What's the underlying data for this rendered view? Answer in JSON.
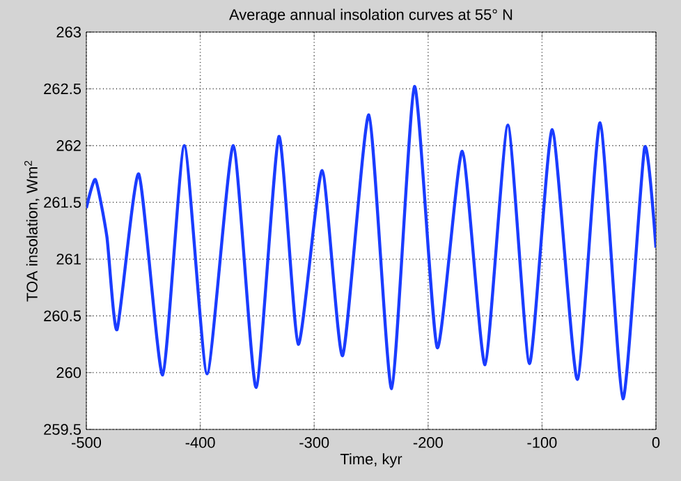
{
  "chart_data": {
    "type": "line",
    "title": "Average annual insolation curves at 55° N",
    "xlabel": "Time, kyr",
    "ylabel": "TOA insolation, Wm$^{2}$",
    "series": [
      {
        "color": "#1a3cff",
        "x": [
          -500,
          -492,
          -482,
          -473,
          -454,
          -433,
          -414,
          -394,
          -371,
          -351,
          -331,
          -314,
          -293,
          -275,
          -252,
          -232,
          -212,
          -192,
          -170,
          -150,
          -130,
          -111,
          -91,
          -69,
          -49,
          -29,
          -10,
          0
        ],
        "values": [
          261.45,
          261.7,
          261.2,
          260.38,
          261.75,
          259.98,
          262.0,
          259.99,
          262.0,
          259.87,
          262.08,
          260.25,
          261.78,
          260.15,
          262.27,
          259.86,
          262.52,
          260.22,
          261.95,
          260.07,
          262.18,
          260.08,
          262.14,
          259.94,
          262.2,
          259.77,
          261.98,
          261.1
        ]
      }
    ],
    "xlim": [
      -500,
      0
    ],
    "xticks": [
      -500,
      -400,
      -300,
      -200,
      -100,
      0
    ],
    "ylim": [
      259.5,
      263
    ],
    "yticks": [
      259.5,
      260,
      260.5,
      261,
      261.5,
      262,
      262.5,
      263
    ],
    "grid": true,
    "line_style": "solid",
    "marker": "none"
  }
}
